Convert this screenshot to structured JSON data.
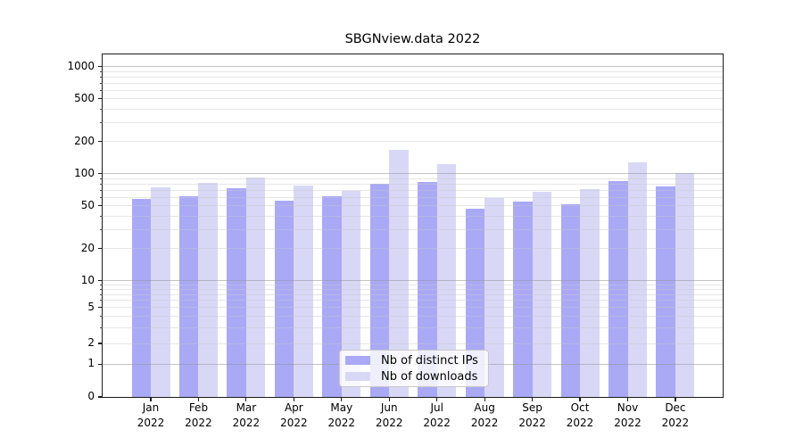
{
  "title": "SBGNview.data 2022",
  "chart_data": {
    "type": "bar",
    "title": "SBGNview.data 2022",
    "categories": [
      "Jan 2022",
      "Feb 2022",
      "Mar 2022",
      "Apr 2022",
      "May 2022",
      "Jun 2022",
      "Jul 2022",
      "Aug 2022",
      "Sep 2022",
      "Oct 2022",
      "Nov 2022",
      "Dec 2022"
    ],
    "series": [
      {
        "name": "Nb of distinct IPs",
        "color": "#a9a9f6",
        "values": [
          58,
          61,
          73,
          56,
          61,
          81,
          84,
          47,
          55,
          52,
          86,
          76
        ]
      },
      {
        "name": "Nb of downloads",
        "color": "#d8d8f6",
        "values": [
          75,
          82,
          92,
          77,
          69,
          168,
          122,
          59,
          68,
          72,
          128,
          101
        ]
      }
    ],
    "xlabel": "",
    "ylabel": "",
    "yscale": "symlog",
    "y_ticks": [
      0,
      1,
      2,
      5,
      10,
      20,
      50,
      100,
      200,
      500,
      1000
    ],
    "ylim": [
      0,
      1300
    ],
    "grid": true,
    "legend_position": "lower center"
  }
}
